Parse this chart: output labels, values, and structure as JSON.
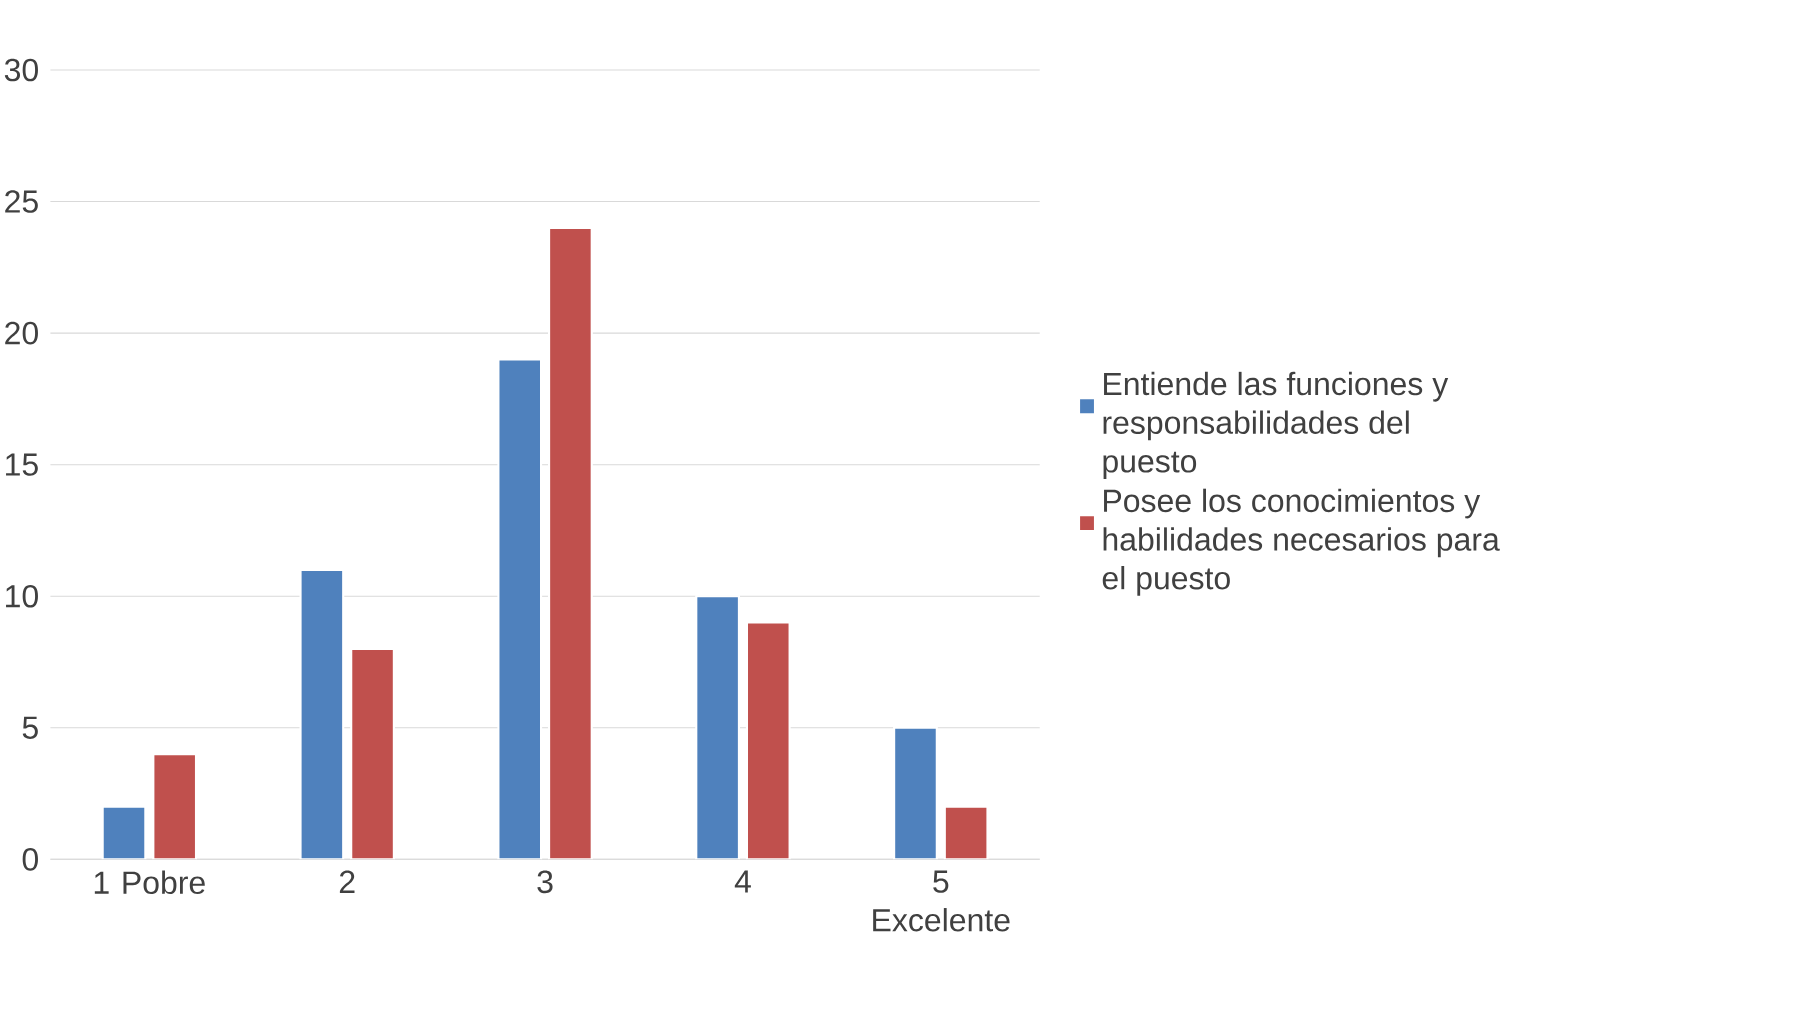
{
  "chart_data": {
    "type": "bar",
    "categories": [
      "1 Pobre",
      "2",
      "3",
      "4",
      "5 Excelente"
    ],
    "series": [
      {
        "name": "Entiende las funciones y responsabilidades del puesto",
        "color": "#4f81bd",
        "values": [
          2,
          11,
          19,
          10,
          5
        ]
      },
      {
        "name": "Posee los conocimientos y habilidades necesarios para el puesto",
        "color": "#c0504d",
        "values": [
          4,
          8,
          24,
          9,
          2
        ]
      }
    ],
    "ylim": [
      0,
      30
    ],
    "yticks": [
      0,
      5,
      10,
      15,
      20,
      25,
      30
    ],
    "grid": "y",
    "legend": "right"
  }
}
